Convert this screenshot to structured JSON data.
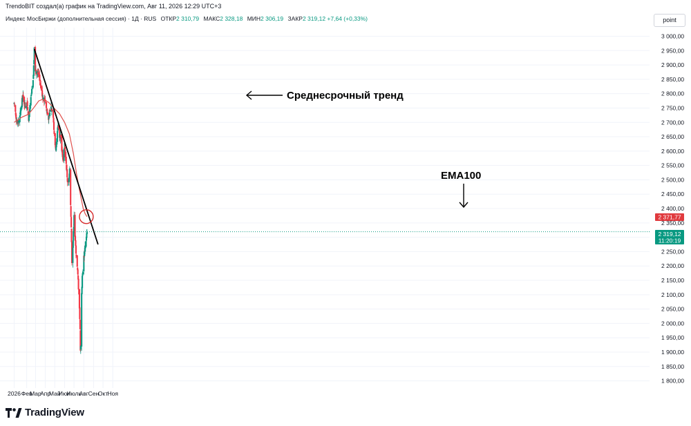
{
  "header": {
    "attribution": "TrendoBIT создал(а) график на TradingView.com, Авг 11, 2026 12:29 UTC+3"
  },
  "legend": {
    "symbol": "Индекс МосБиржи (дополнительная сессия) · 1Д · RUS",
    "open_label": "ОТКР",
    "open_value": "2 310,79",
    "high_label": "МАКС",
    "high_value": "2 328,18",
    "low_label": "МИН",
    "low_value": "2 306,19",
    "close_label": "ЗАКР",
    "close_value": "2 319,12",
    "change": "+7,64 (+0,33%)"
  },
  "scale_button": "point",
  "price_axis": {
    "ticks": [
      "3 000,00",
      "2 950,00",
      "2 900,00",
      "2 850,00",
      "2 800,00",
      "2 750,00",
      "2 700,00",
      "2 650,00",
      "2 600,00",
      "2 550,00",
      "2 500,00",
      "2 450,00",
      "2 400,00",
      "2 350,00",
      "2 300,00",
      "2 250,00",
      "2 200,00",
      "2 150,00",
      "2 100,00",
      "2 050,00",
      "2 000,00",
      "1 950,00",
      "1 900,00",
      "1 850,00",
      "1 800,00"
    ],
    "ema_tag": "2 371,77",
    "price_tag": "2 319,12",
    "time_tag": "11:20:19"
  },
  "time_axis": {
    "labels": [
      "2026",
      "Фев",
      "Мар",
      "Апр",
      "Май",
      "Июн",
      "Июль",
      "Авг",
      "Сен",
      "Окт",
      "Ноя"
    ]
  },
  "annotations": {
    "trend_label": "Среднесрочный тренд",
    "ema_label": "EMA100"
  },
  "brand": {
    "name": "TradingView"
  },
  "colors": {
    "up": "#089981",
    "down": "#f23645",
    "ema": "#e0504d",
    "trendline": "#000000",
    "grid": "#f0f3fa"
  },
  "chart_data": {
    "type": "candlestick",
    "interval": "1D",
    "ylim": [
      1775,
      3030
    ],
    "x_labels": [
      "2026",
      "Фев",
      "Мар",
      "Апр",
      "Май",
      "Июн",
      "Июль",
      "Авг",
      "Сен",
      "Окт",
      "Ноя"
    ],
    "anchors": [
      {
        "date": "2026-01-01",
        "price": 2760
      },
      {
        "date": "2026-01-12",
        "price": 2690
      },
      {
        "date": "2026-01-19",
        "price": 2720
      },
      {
        "date": "2026-01-28",
        "price": 2790
      },
      {
        "date": "2026-02-05",
        "price": 2760
      },
      {
        "date": "2026-02-12",
        "price": 2760
      },
      {
        "date": "2026-02-16",
        "price": 2715
      },
      {
        "date": "2026-02-24",
        "price": 2790
      },
      {
        "date": "2026-03-02",
        "price": 2840
      },
      {
        "date": "2026-03-06",
        "price": 2950
      },
      {
        "date": "2026-03-09",
        "price": 2885
      },
      {
        "date": "2026-03-16",
        "price": 2875
      },
      {
        "date": "2026-03-20",
        "price": 2870
      },
      {
        "date": "2026-03-25",
        "price": 2840
      },
      {
        "date": "2026-03-30",
        "price": 2805
      },
      {
        "date": "2026-04-03",
        "price": 2785
      },
      {
        "date": "2026-04-10",
        "price": 2780
      },
      {
        "date": "2026-04-14",
        "price": 2740
      },
      {
        "date": "2026-04-21",
        "price": 2715
      },
      {
        "date": "2026-04-27",
        "price": 2750
      },
      {
        "date": "2026-05-04",
        "price": 2750
      },
      {
        "date": "2026-05-09",
        "price": 2630
      },
      {
        "date": "2026-05-14",
        "price": 2610
      },
      {
        "date": "2026-05-20",
        "price": 2685
      },
      {
        "date": "2026-05-25",
        "price": 2650
      },
      {
        "date": "2026-05-28",
        "price": 2660
      },
      {
        "date": "2026-06-02",
        "price": 2595
      },
      {
        "date": "2026-06-05",
        "price": 2560
      },
      {
        "date": "2026-06-09",
        "price": 2620
      },
      {
        "date": "2026-06-15",
        "price": 2555
      },
      {
        "date": "2026-06-19",
        "price": 2500
      },
      {
        "date": "2026-06-23",
        "price": 2490
      },
      {
        "date": "2026-06-26",
        "price": 2530
      },
      {
        "date": "2026-07-01",
        "price": 2340
      },
      {
        "date": "2026-07-03",
        "price": 2220
      },
      {
        "date": "2026-07-08",
        "price": 2310
      },
      {
        "date": "2026-07-10",
        "price": 2385
      },
      {
        "date": "2026-07-14",
        "price": 2280
      },
      {
        "date": "2026-07-17",
        "price": 2240
      },
      {
        "date": "2026-07-21",
        "price": 2180
      },
      {
        "date": "2026-07-23",
        "price": 2150
      },
      {
        "date": "2026-07-27",
        "price": 2060
      },
      {
        "date": "2026-07-29",
        "price": 1975
      },
      {
        "date": "2026-07-30",
        "price": 1915
      },
      {
        "date": "2026-07-31",
        "price": 1920
      },
      {
        "date": "2026-08-03",
        "price": 2110
      },
      {
        "date": "2026-08-05",
        "price": 2160
      },
      {
        "date": "2026-08-10",
        "price": 2230
      },
      {
        "date": "2026-08-14",
        "price": 2270
      },
      {
        "date": "2026-08-18",
        "price": 2300
      },
      {
        "date": "2026-08-20",
        "price": 2319.12
      }
    ],
    "ema100": [
      {
        "date": "2026-01-01",
        "value": 2700
      },
      {
        "date": "2026-01-25",
        "value": 2718
      },
      {
        "date": "2026-02-15",
        "value": 2728
      },
      {
        "date": "2026-03-02",
        "value": 2748
      },
      {
        "date": "2026-03-20",
        "value": 2775
      },
      {
        "date": "2026-04-01",
        "value": 2780
      },
      {
        "date": "2026-04-20",
        "value": 2770
      },
      {
        "date": "2026-05-05",
        "value": 2752
      },
      {
        "date": "2026-05-25",
        "value": 2730
      },
      {
        "date": "2026-06-10",
        "value": 2700
      },
      {
        "date": "2026-06-25",
        "value": 2660
      },
      {
        "date": "2026-07-08",
        "value": 2590
      },
      {
        "date": "2026-07-18",
        "value": 2520
      },
      {
        "date": "2026-07-28",
        "value": 2460
      },
      {
        "date": "2026-08-08",
        "value": 2400
      },
      {
        "date": "2026-08-14",
        "value": 2382
      },
      {
        "date": "2026-08-20",
        "value": 2371.77
      }
    ],
    "trendline": [
      {
        "date": "2026-03-06",
        "price": 2955
      },
      {
        "date": "2026-09-24",
        "price": 2275
      }
    ],
    "last_close": 2319.12,
    "ema_last": 2371.77
  }
}
